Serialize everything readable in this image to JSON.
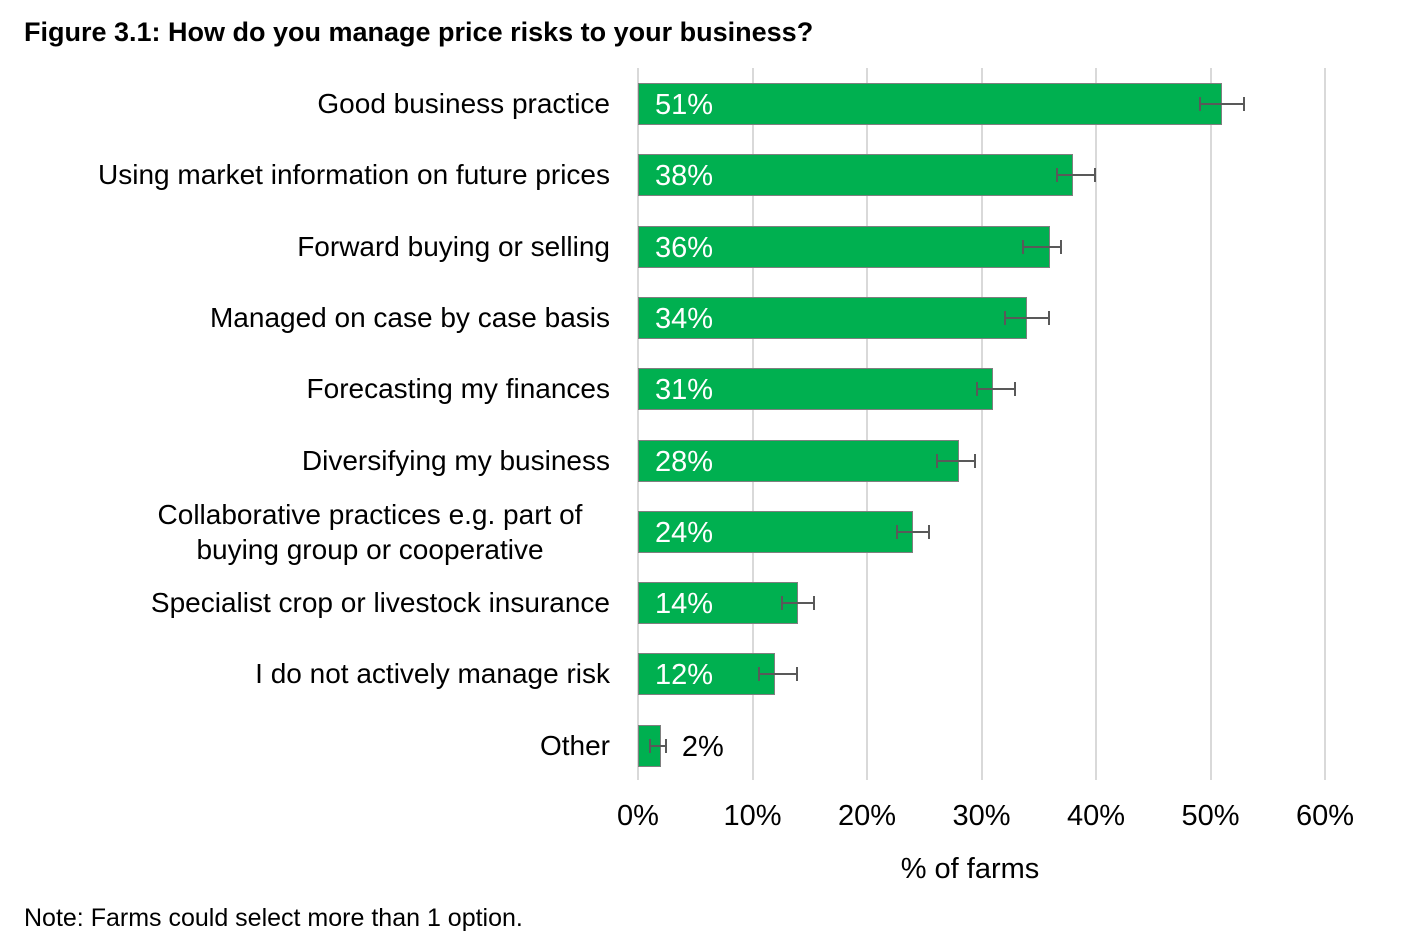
{
  "figure": {
    "title": "Figure 3.1: How do you manage price risks to your business?",
    "note": "Note: Farms could select more than 1 option."
  },
  "colors": {
    "bar": "#00b050",
    "bar_border": "#7f7f7f",
    "grid": "#d9d9d9",
    "error_bar": "#595959"
  },
  "chart_data": {
    "type": "bar",
    "orientation": "horizontal",
    "title": "Figure 3.1: How do you manage price risks to your business?",
    "xlabel": "% of farms",
    "ylabel": "",
    "xlim": [
      0,
      60
    ],
    "xticks": [
      "0%",
      "10%",
      "20%",
      "30%",
      "40%",
      "50%",
      "60%"
    ],
    "grid": true,
    "legend": null,
    "categories": [
      "Good business practice",
      "Using market information on future prices",
      "Forward buying or selling",
      "Managed on case by case basis",
      "Forecasting my finances",
      "Diversifying my business",
      "Collaborative practices e.g. part of buying group or cooperative",
      "Specialist crop or livestock insurance",
      "I do not actively manage risk",
      "Other"
    ],
    "values": [
      51,
      38,
      36,
      34,
      31,
      28,
      24,
      14,
      12,
      2
    ],
    "value_labels": [
      "51%",
      "38%",
      "36%",
      "34%",
      "31%",
      "28%",
      "24%",
      "14%",
      "12%",
      "2%"
    ],
    "error_bars": [
      [
        49,
        53
      ],
      [
        36.5,
        40
      ],
      [
        33.5,
        37
      ],
      [
        32,
        36
      ],
      [
        29.5,
        33
      ],
      [
        26,
        29.5
      ],
      [
        22.5,
        25.5
      ],
      [
        12.5,
        15.5
      ],
      [
        10.5,
        14
      ],
      [
        1,
        2.5
      ]
    ],
    "note": "Note: Farms could select more than 1 option."
  }
}
